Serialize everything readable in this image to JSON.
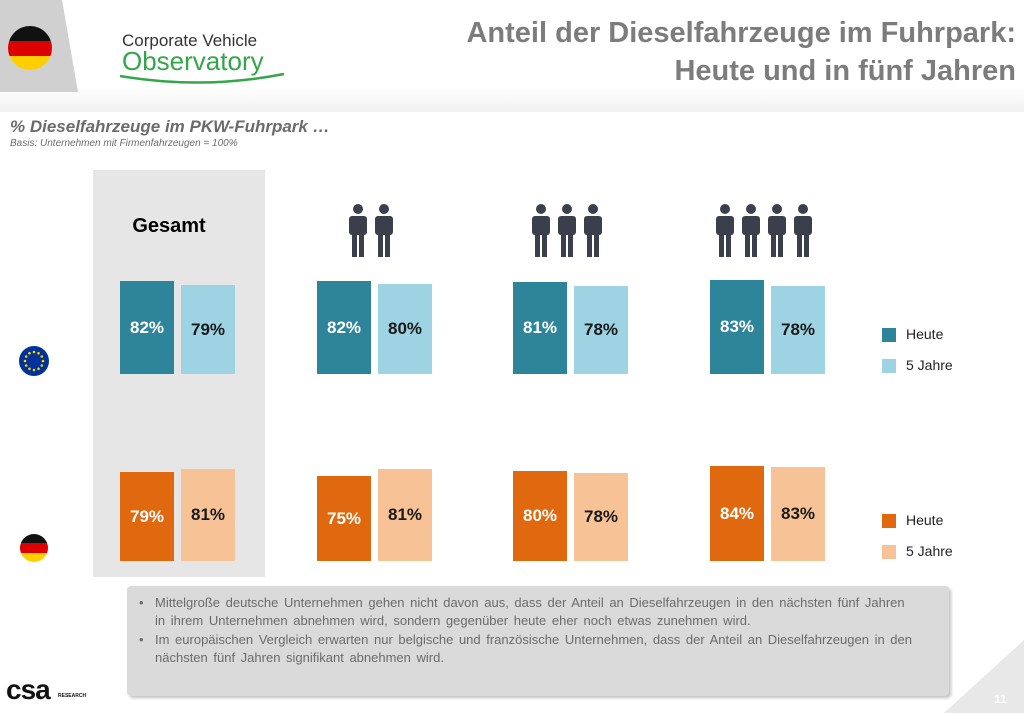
{
  "header": {
    "title_line1": "Anteil der Dieselfahrzeuge im Fuhrpark:",
    "title_line2": "Heute und in fünf Jahren",
    "logo_line1": "Corporate Vehicle",
    "logo_line2": "Observatory"
  },
  "subtitle": "% Dieselfahrzeuge im PKW-Fuhrpark …",
  "basis": "Basis: Unternehmen mit Firmenfahrzeugen  = 100%",
  "gesamt_label": "Gesamt",
  "legend": {
    "eu": {
      "heute": "Heute",
      "fuenf": "5 Jahre"
    },
    "de": {
      "heute": "Heute",
      "fuenf": "5 Jahre"
    }
  },
  "notes": [
    "Mittelgroße deutsche Unternehmen gehen nicht davon aus, dass der Anteil an Dieselfahrzeugen in den nächsten fünf Jahren in ihrem Unternehmen abnehmen wird, sondern gegenüber heute eher noch etwas zunehmen wird.",
    "Im europäischen Vergleich erwarten nur belgische und französische Unternehmen, dass der Anteil an Dieselfahrzeugen in den nächsten fünf Jahren signifikant abnehmen wird."
  ],
  "footer": {
    "csa": "csa",
    "csa_sub": "RESEARCH",
    "page_number": "11"
  },
  "colors": {
    "eu_heute": "#2e8499",
    "eu_fuenf": "#9dd3e3",
    "de_heute": "#e0680f",
    "de_fuenf": "#f7c396",
    "person_icon": "#3a3f4b"
  },
  "chart_data": {
    "type": "bar",
    "categories": [
      "Gesamt",
      "2",
      "3",
      "4"
    ],
    "category_icons": [
      "none",
      "two-persons-icon",
      "three-persons-icon",
      "four-persons-icon"
    ],
    "panels": [
      {
        "region": "EU",
        "icon": "eu-flag-icon",
        "series": [
          {
            "name": "Heute",
            "values": [
              82,
              82,
              81,
              83
            ],
            "labels": [
              "82%",
              "82%",
              "81%",
              "83%"
            ]
          },
          {
            "name": "5 Jahre",
            "values": [
              79,
              80,
              78,
              78
            ],
            "labels": [
              "79%",
              "80%",
              "78%",
              "78%"
            ]
          }
        ]
      },
      {
        "region": "DE",
        "icon": "germany-flag-icon",
        "series": [
          {
            "name": "Heute",
            "values": [
              79,
              75,
              80,
              84
            ],
            "labels": [
              "79%",
              "75%",
              "80%",
              "84%"
            ]
          },
          {
            "name": "5 Jahre",
            "values": [
              81,
              81,
              78,
              83
            ],
            "labels": [
              "81%",
              "81%",
              "78%",
              "83%"
            ]
          }
        ]
      }
    ],
    "ylim": [
      0,
      100
    ],
    "legend_position": "right"
  }
}
